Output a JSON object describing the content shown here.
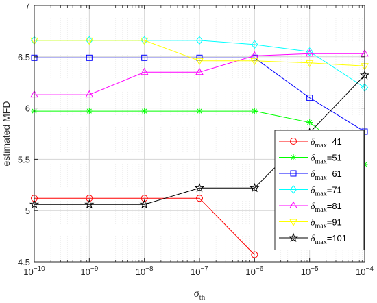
{
  "chart_data": {
    "type": "line",
    "xscale": "log",
    "xlim": [
      1e-10,
      0.0001
    ],
    "ylim": [
      4.5,
      7
    ],
    "grid": true,
    "xlabel": {
      "main": "σ",
      "sub": "th"
    },
    "ylabel": "estimated MFD",
    "x_ticks": [
      {
        "value": 1e-10,
        "base": "10",
        "exp": "−10"
      },
      {
        "value": 1e-09,
        "base": "10",
        "exp": "−9"
      },
      {
        "value": 1e-08,
        "base": "10",
        "exp": "−8"
      },
      {
        "value": 1e-07,
        "base": "10",
        "exp": "−7"
      },
      {
        "value": 1e-06,
        "base": "10",
        "exp": "−6"
      },
      {
        "value": 1e-05,
        "base": "10",
        "exp": "−5"
      },
      {
        "value": 0.0001,
        "base": "10",
        "exp": "−4"
      }
    ],
    "y_ticks": [
      "4.5",
      "5",
      "5.5",
      "6",
      "6.5",
      "7"
    ],
    "legend_position": "bottom-right",
    "x": [
      1e-10,
      1e-09,
      1e-08,
      1e-07,
      1e-06,
      1e-05,
      0.0001
    ],
    "series": [
      {
        "legend_main": "δ",
        "legend_sub": "max",
        "legend_tail": "=41",
        "color": "#ff0000",
        "marker": "circle",
        "values": [
          5.12,
          5.12,
          5.12,
          5.12,
          4.57,
          null,
          null
        ]
      },
      {
        "legend_main": "δ",
        "legend_sub": "max",
        "legend_tail": "=51",
        "color": "#00ff00",
        "marker": "asterisk",
        "values": [
          5.97,
          5.97,
          5.97,
          5.97,
          5.97,
          5.86,
          5.45
        ]
      },
      {
        "legend_main": "δ",
        "legend_sub": "max",
        "legend_tail": "=61",
        "color": "#0000ff",
        "marker": "square",
        "values": [
          6.49,
          6.49,
          6.49,
          6.49,
          6.49,
          6.1,
          5.77
        ]
      },
      {
        "legend_main": "δ",
        "legend_sub": "max",
        "legend_tail": "=71",
        "color": "#00ffff",
        "marker": "diamond",
        "values": [
          6.66,
          6.66,
          6.66,
          6.66,
          6.62,
          6.55,
          6.2
        ]
      },
      {
        "legend_main": "δ",
        "legend_sub": "max",
        "legend_tail": "=81",
        "color": "#ff00ff",
        "marker": "triangle-up",
        "values": [
          6.13,
          6.13,
          6.35,
          6.35,
          6.51,
          6.53,
          6.53
        ]
      },
      {
        "legend_main": "δ",
        "legend_sub": "max",
        "legend_tail": "=91",
        "color": "#ffff00",
        "marker": "triangle-down",
        "values": [
          6.66,
          6.66,
          6.66,
          6.46,
          6.46,
          6.44,
          6.41
        ]
      },
      {
        "legend_main": "δ",
        "legend_sub": "max",
        "legend_tail": "=101",
        "color": "#000000",
        "marker": "pentagram",
        "values": [
          5.06,
          5.06,
          5.06,
          5.22,
          5.22,
          5.76,
          6.32
        ]
      }
    ]
  }
}
